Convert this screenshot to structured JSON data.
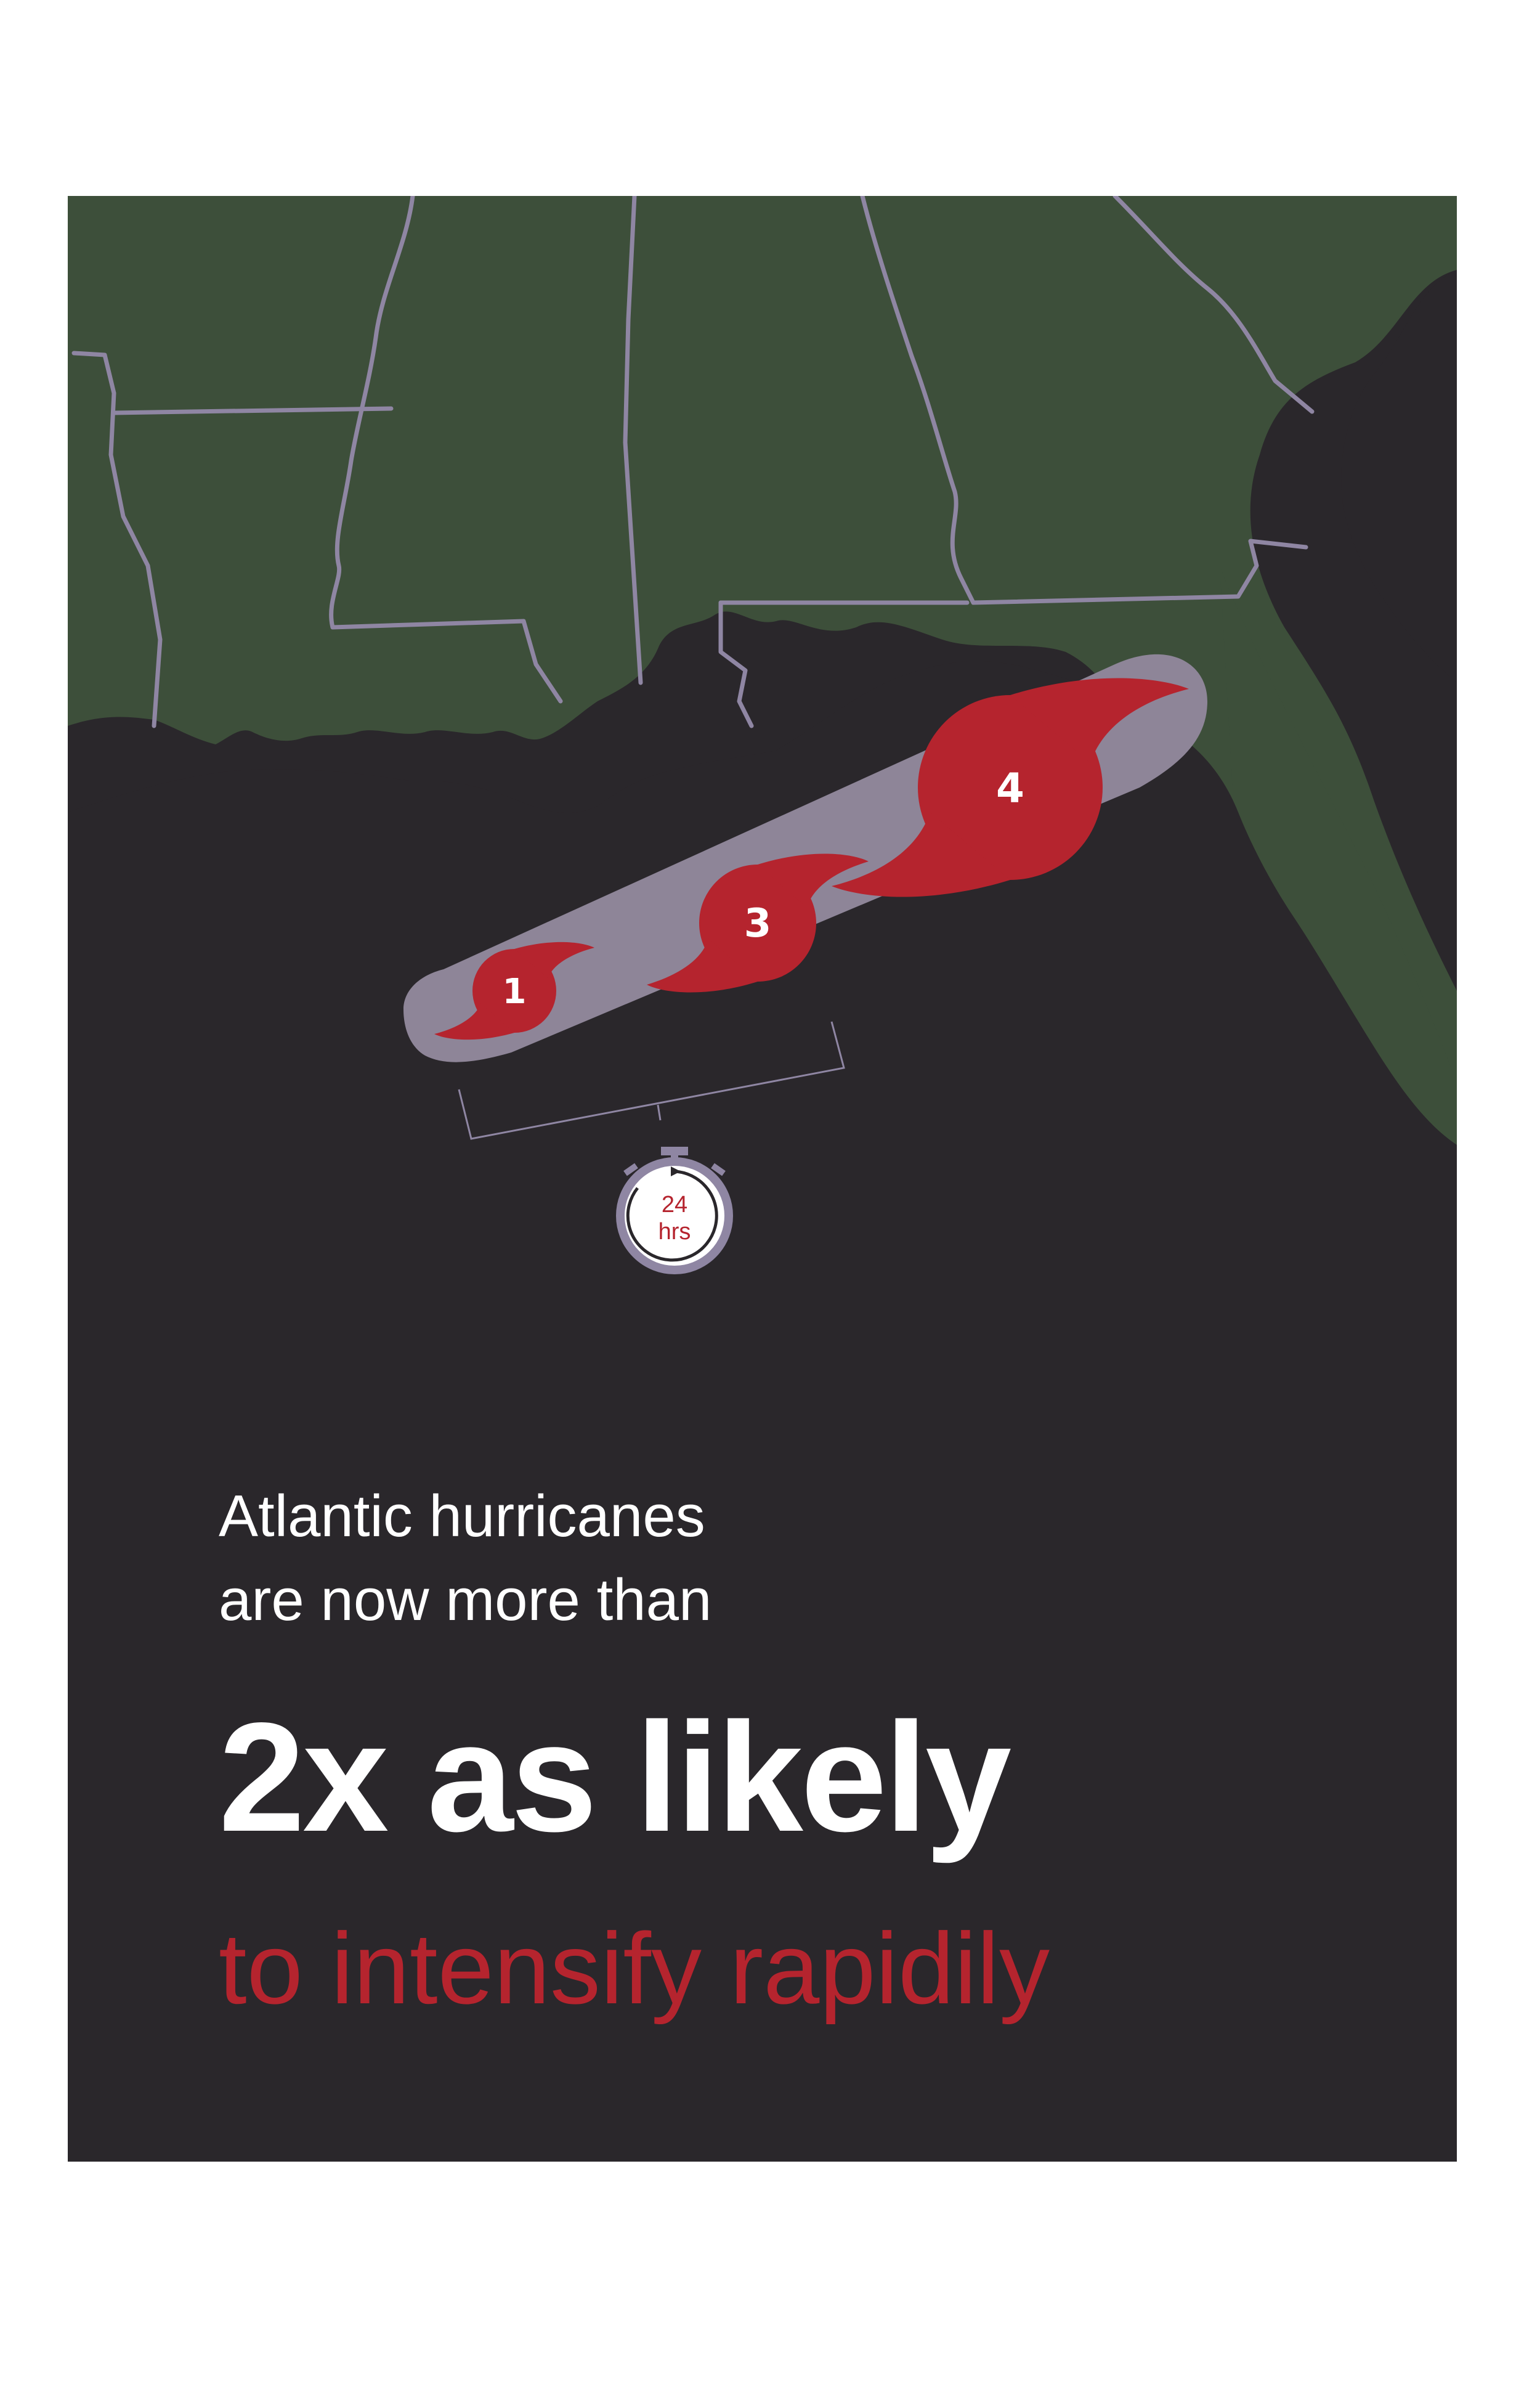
{
  "colors": {
    "background": "#2a272b",
    "land": "#3d4f3a",
    "borders": "#8f86a3",
    "cone": "#8e8598",
    "storm": "#b5242e",
    "text": "#ffffff",
    "accent": "#b5242e"
  },
  "map": {
    "storm_categories": [
      "1",
      "3",
      "4"
    ],
    "timer": {
      "value": "24",
      "unit": "hrs"
    }
  },
  "text": {
    "intro_line1": "Atlantic hurricanes",
    "intro_line2": "are now more than",
    "headline": "2x as likely",
    "subline": "to intensify rapidily"
  }
}
